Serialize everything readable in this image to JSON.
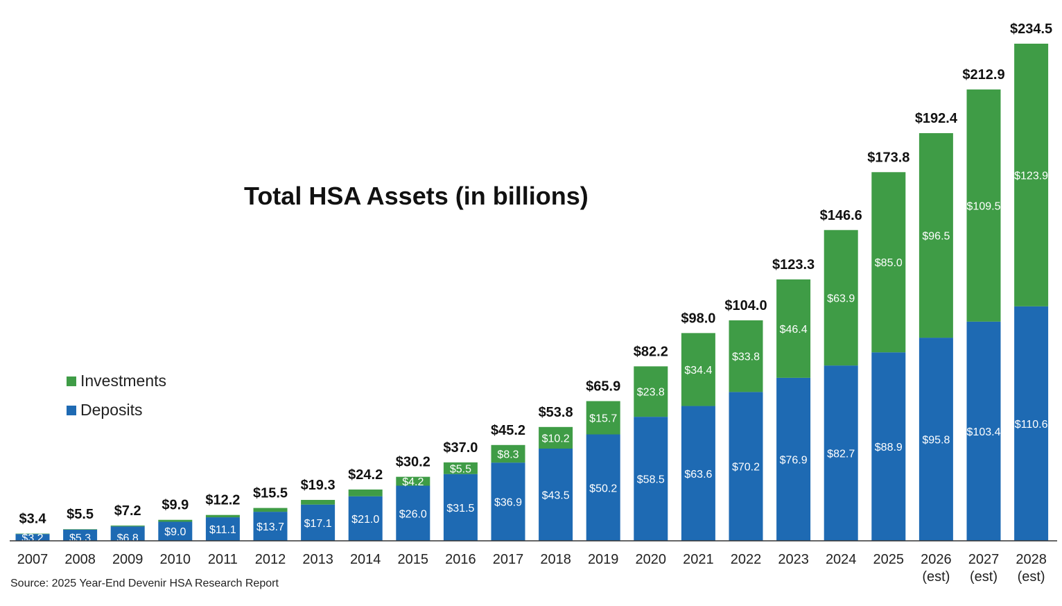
{
  "chart_data": {
    "type": "bar",
    "stacked": true,
    "title": "Total HSA Assets (in billions)",
    "source": "Source: 2025 Year-End Devenir HSA Research Report",
    "categories": [
      [
        "2007"
      ],
      [
        "2008"
      ],
      [
        "2009"
      ],
      [
        "2010"
      ],
      [
        "2011"
      ],
      [
        "2012"
      ],
      [
        "2013"
      ],
      [
        "2014"
      ],
      [
        "2015"
      ],
      [
        "2016"
      ],
      [
        "2017"
      ],
      [
        "2018"
      ],
      [
        "2019"
      ],
      [
        "2020"
      ],
      [
        "2021"
      ],
      [
        "2022"
      ],
      [
        "2023"
      ],
      [
        "2024"
      ],
      [
        "2025"
      ],
      [
        "2026",
        "(est)"
      ],
      [
        "2027",
        "(est)"
      ],
      [
        "2028",
        "(est)"
      ]
    ],
    "totals": [
      3.4,
      5.5,
      7.2,
      9.9,
      12.2,
      15.5,
      19.3,
      24.2,
      30.2,
      37.0,
      45.2,
      53.8,
      65.9,
      82.2,
      98.0,
      104.0,
      123.3,
      146.6,
      173.8,
      192.4,
      212.9,
      234.5
    ],
    "total_labels": [
      "$3.4",
      "$5.5",
      "$7.2",
      "$9.9",
      "$12.2",
      "$15.5",
      "$19.3",
      "$24.2",
      "$30.2",
      "$37.0",
      "$45.2",
      "$53.8",
      "$65.9",
      "$82.2",
      "$98.0",
      "$104.0",
      "$123.3",
      "$146.6",
      "$173.8",
      "$192.4",
      "$212.9",
      "$234.5"
    ],
    "series": [
      {
        "name": "Deposits",
        "color": "#1e6ab3",
        "values": [
          3.2,
          5.3,
          6.8,
          9.0,
          11.1,
          13.7,
          17.1,
          21.0,
          26.0,
          31.5,
          36.9,
          43.5,
          50.2,
          58.5,
          63.6,
          70.2,
          76.9,
          82.7,
          88.9,
          95.8,
          103.4,
          110.6
        ],
        "labels": [
          "$3.2",
          "$5.3",
          "$6.8",
          "$9.0",
          "$11.1",
          "$13.7",
          "$17.1",
          "$21.0",
          "$26.0",
          "$31.5",
          "$36.9",
          "$43.5",
          "$50.2",
          "$58.5",
          "$63.6",
          "$70.2",
          "$76.9",
          "$82.7",
          "$88.9",
          "$95.8",
          "$103.4",
          "$110.6"
        ]
      },
      {
        "name": "Investments",
        "color": "#3f9c46",
        "values": [
          0.2,
          0.2,
          0.4,
          0.9,
          1.1,
          1.8,
          2.2,
          3.2,
          4.2,
          5.5,
          8.3,
          10.2,
          15.7,
          23.8,
          34.4,
          33.8,
          46.4,
          63.9,
          85.0,
          96.5,
          109.5,
          123.9
        ],
        "labels": [
          null,
          null,
          null,
          null,
          null,
          null,
          null,
          null,
          "$4.2",
          "$5.5",
          "$8.3",
          "$10.2",
          "$15.7",
          "$23.8",
          "$34.4",
          "$33.8",
          "$46.4",
          "$63.9",
          "$85.0",
          "$96.5",
          "$109.5",
          "$123.9"
        ]
      }
    ],
    "ylim": [
      0,
      240
    ],
    "legend": {
      "position": "left",
      "order": [
        "Investments",
        "Deposits"
      ]
    },
    "grid": false
  }
}
